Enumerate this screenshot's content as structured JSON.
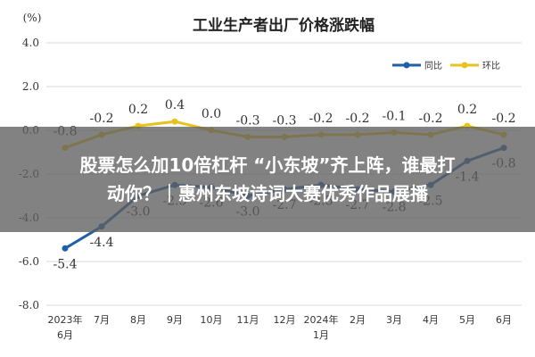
{
  "overlay": {
    "line1": "股票怎么加10倍杠杆 “小东坡”齐上阵，谁最打",
    "line2": "动你？｜惠州东坡诗词大赛优秀作品展播"
  },
  "chart_data": {
    "type": "line",
    "title": "工业生产者出厂价格涨跌幅",
    "unit": "(%)",
    "categories": [
      "2023年\n6月",
      "7月",
      "8月",
      "9月",
      "10月",
      "11月",
      "12月",
      "2024年\n1月",
      "2月",
      "3月",
      "4月",
      "5月",
      "6月"
    ],
    "y_ticks": [
      "4.0",
      "2.0",
      "0.0",
      "-2.0",
      "-4.0",
      "-6.0",
      "-8.0"
    ],
    "ylim": [
      -8,
      4
    ],
    "grid": true,
    "legend_position": "top-right",
    "series": [
      {
        "name": "同比",
        "color": "#1f5ea8",
        "values": [
          -5.4,
          -4.4,
          -3.0,
          -2.5,
          -2.6,
          -3.0,
          -2.7,
          -2.5,
          -2.7,
          -2.8,
          -2.5,
          -1.4,
          -0.8
        ],
        "labels": [
          "-5.4",
          "-4.4",
          "-3.0",
          "-2.5",
          "-2.6",
          "-3.0",
          "-2.7",
          "-2.5",
          "-2.7",
          "-2.8",
          "-2.5",
          "-1.4",
          "-0.8"
        ]
      },
      {
        "name": "环比",
        "color": "#e8c21d",
        "values": [
          -0.8,
          -0.2,
          0.2,
          0.4,
          0.0,
          -0.3,
          -0.3,
          -0.2,
          -0.2,
          -0.1,
          -0.2,
          0.2,
          -0.2
        ],
        "labels": [
          "-0.8",
          "-0.2",
          "0.2",
          "0.4",
          "0.0",
          "-0.3",
          "-0.3",
          "-0.2",
          "-0.2",
          "-0.1",
          "-0.2",
          "0.2",
          "-0.2"
        ]
      }
    ]
  }
}
